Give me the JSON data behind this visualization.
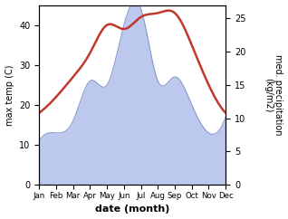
{
  "months": [
    "Jan",
    "Feb",
    "Mar",
    "Apr",
    "May",
    "Jun",
    "Jul",
    "Aug",
    "Sep",
    "Oct",
    "Nov",
    "Dec"
  ],
  "temp": [
    18,
    22,
    27,
    33,
    40,
    39,
    42,
    43,
    43,
    35,
    25,
    18
  ],
  "precip_left": [
    11,
    13,
    16,
    26,
    25,
    40,
    44,
    26,
    27,
    20,
    13,
    17
  ],
  "temp_color": "#c0392b",
  "precip_fill_color": "#bdc8ee",
  "precip_line_color": "#8899cc",
  "ylabel_left": "max temp (C)",
  "ylabel_right": "med. precipitation\n(kg/m2)",
  "xlabel": "date (month)",
  "ylim_left": [
    0,
    45
  ],
  "ylim_right": [
    0,
    27
  ],
  "yticks_left": [
    0,
    10,
    20,
    30,
    40
  ],
  "yticks_right": [
    0,
    5,
    10,
    15,
    20,
    25
  ],
  "background_color": "#ffffff"
}
